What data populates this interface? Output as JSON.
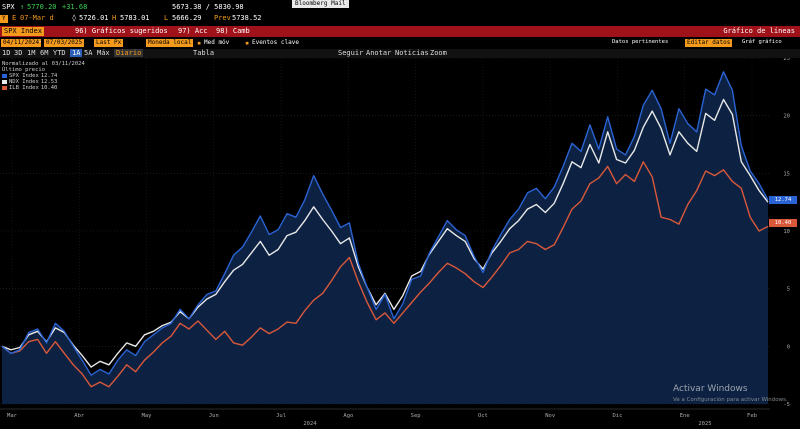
{
  "header": {
    "ticker": "SPX",
    "last": "5770.20",
    "change": "+31.68",
    "range": "5673.38 / 5830.98",
    "window_button": "Bloomberg Mail",
    "badge": "Y",
    "label_e": "E",
    "date": "07-Mar d",
    "open": "5726.01",
    "high_label": "H",
    "high": "5783.01",
    "low_label": "L",
    "low": "5666.29",
    "prev_label": "Prev",
    "prev": "5738.52"
  },
  "tabbar": {
    "index": "SPX Index",
    "items": [
      "96) Gráficos sugeridos",
      "97) Acc",
      "98) Camb"
    ],
    "title": "Gráfico de líneas"
  },
  "toolbar": {
    "start": "04/11/2024",
    "end": "07/03/2025",
    "field": "Last Px",
    "currency": "Moneda local",
    "items": [
      "Med móv",
      "Eventos clave"
    ],
    "right": [
      "Datos pertinentes",
      "Editar datos",
      "Gráf gráfico"
    ]
  },
  "periods": {
    "items": [
      "1D",
      "3D",
      "1M",
      "6M",
      "YTD",
      "1A",
      "5A",
      "Máx",
      "Diario",
      "Tabla"
    ],
    "secondary": [
      "Seguir",
      "Anotar",
      "Noticias",
      "Zoom"
    ]
  },
  "legend": {
    "title": "Normalizado al 03/11/2024",
    "subtitle": "Último precio",
    "entries": [
      {
        "name": "SPX Index",
        "value": "12.74",
        "color": "#2a63d4"
      },
      {
        "name": "NDX Index",
        "value": "12.53",
        "color": "#e8e8e8"
      },
      {
        "name": "ILB Index",
        "value": "10.40",
        "color": "#d9583a"
      }
    ]
  },
  "watermark": {
    "title": "Activar Windows",
    "subtitle": "Ve a Configuración para activar Windows."
  },
  "chart_data": {
    "type": "line",
    "ylim": [
      -5,
      25
    ],
    "yticks": [
      -5,
      0,
      5,
      10,
      15,
      20,
      25
    ],
    "x_month_labels": [
      "Mar",
      "Abr",
      "May",
      "Jun",
      "Jul",
      "Ago",
      "Sep",
      "Oct",
      "Nov",
      "Dic",
      "Ene",
      "Feb"
    ],
    "x_year_labels": [
      "2024",
      "2025"
    ],
    "series": [
      {
        "name": "SPX Index",
        "color": "#2a63d4",
        "last": "12.74",
        "values": [
          0,
          -0.6,
          -0.3,
          1.2,
          1.5,
          0.3,
          2,
          1.3,
          0,
          -1.2,
          -2.5,
          -2,
          -2.4,
          -1.2,
          -0.3,
          -0.8,
          0.4,
          1,
          1.6,
          2,
          3.2,
          2.4,
          3.6,
          4.5,
          4.8,
          6.3,
          7.9,
          8.6,
          9.9,
          11.3,
          9.7,
          10.1,
          11.5,
          11.2,
          12.7,
          14.8,
          13.2,
          11.8,
          10.3,
          10.7,
          7.2,
          5.1,
          3.2,
          4.5,
          2.4,
          3.7,
          5.8,
          6.1,
          8.1,
          9.5,
          10.9,
          10.1,
          9.6,
          7.8,
          6.4,
          8.3,
          9.7,
          11,
          11.9,
          13.3,
          13.7,
          12.8,
          13.8,
          15.6,
          17.6,
          16.9,
          19.2,
          17.1,
          19.9,
          17.1,
          16.6,
          18.2,
          20.9,
          22.2,
          20.6,
          17.6,
          20.6,
          19.3,
          18.6,
          22.3,
          21.8,
          23.8,
          22.2,
          17.4,
          15.2,
          14.1,
          12.7
        ]
      },
      {
        "name": "NDX Index",
        "color": "#e8e8e8",
        "last": "12.53",
        "values": [
          0,
          -0.3,
          -0.1,
          1,
          1.3,
          0.4,
          1.6,
          1.2,
          0.1,
          -0.8,
          -1.8,
          -1.3,
          -1.6,
          -0.6,
          0.3,
          0,
          1,
          1.3,
          1.8,
          2.1,
          3,
          2.4,
          3.4,
          4.1,
          4.5,
          5.6,
          6.6,
          7.1,
          8.1,
          9.1,
          7.9,
          8.4,
          9.6,
          9.9,
          10.9,
          12.1,
          11,
          10,
          8.9,
          9.4,
          6.9,
          5.1,
          3.6,
          4.6,
          3.2,
          4.4,
          6.1,
          6.5,
          8,
          9.1,
          10.2,
          9.6,
          9.1,
          7.6,
          6.7,
          8.1,
          9.1,
          10.2,
          10.9,
          11.9,
          12.3,
          11.6,
          12.4,
          14.1,
          16,
          15.5,
          17.5,
          15.9,
          18.6,
          16.2,
          15.9,
          17,
          19,
          20.4,
          18.9,
          16.6,
          18.6,
          17.6,
          16.9,
          20.2,
          19.6,
          21.4,
          20.1,
          16,
          14.8,
          13.5,
          12.5
        ]
      },
      {
        "name": "ILB Index",
        "color": "#d9583a",
        "last": "10.40",
        "values": [
          0,
          -0.6,
          -0.4,
          0.4,
          0.6,
          -0.6,
          0.4,
          -0.6,
          -1.6,
          -2.4,
          -3.5,
          -3.1,
          -3.5,
          -2.6,
          -1.6,
          -2.2,
          -1.2,
          -0.5,
          0.3,
          0.9,
          2,
          1.5,
          2.2,
          1.4,
          0.6,
          1.3,
          0.3,
          0.1,
          0.8,
          1.6,
          1.1,
          1.5,
          2.1,
          2,
          3.1,
          4,
          4.6,
          5.7,
          6.9,
          7.7,
          5.6,
          3.8,
          2.3,
          2.9,
          2,
          2.9,
          3.8,
          4.7,
          5.5,
          6.4,
          7.2,
          6.8,
          6.3,
          5.6,
          5.1,
          6,
          7,
          8.1,
          8.4,
          9.1,
          8.9,
          8.4,
          8.8,
          10.3,
          11.9,
          12.6,
          14.1,
          14.6,
          15.6,
          14.1,
          14.9,
          14.3,
          16,
          14.7,
          11.2,
          11,
          10.6,
          12.3,
          13.5,
          15.2,
          14.8,
          15.3,
          14.3,
          13.7,
          11.2,
          10,
          10.4
        ]
      }
    ]
  }
}
